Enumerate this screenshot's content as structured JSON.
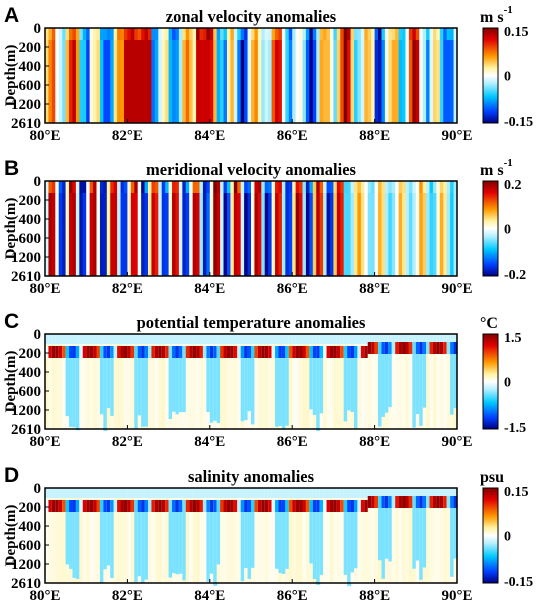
{
  "chart_data": [
    {
      "type": "heatmap",
      "panel_label": "A",
      "title": "zonal velocity anomalies",
      "ylabel": "Depth(m)",
      "unit": "m s",
      "unit_sup": "-1",
      "x_ticks": [
        "80°E",
        "82°E",
        "84°E",
        "86°E",
        "88°E",
        "90°E"
      ],
      "y_ticks": [
        "0",
        "200",
        "400",
        "600",
        "1200",
        "2610"
      ],
      "colorbar_ticks": [
        "0.15",
        "0",
        "-0.15"
      ],
      "xlim": [
        80,
        90
      ],
      "clim": [
        -0.15,
        0.15
      ],
      "pattern": "vertical-stripes"
    },
    {
      "type": "heatmap",
      "panel_label": "B",
      "title": "meridional velocity anomalies",
      "ylabel": "Depth(m)",
      "unit": "m s",
      "unit_sup": "-1",
      "x_ticks": [
        "80°E",
        "82°E",
        "84°E",
        "86°E",
        "88°E",
        "90°E"
      ],
      "y_ticks": [
        "0",
        "200",
        "400",
        "600",
        "1200",
        "2610"
      ],
      "colorbar_ticks": [
        "0.2",
        "0",
        "-0.2"
      ],
      "xlim": [
        80,
        90
      ],
      "clim": [
        -0.2,
        0.2
      ],
      "pattern": "vertical-stripes"
    },
    {
      "type": "heatmap",
      "panel_label": "C",
      "title": "potential temperature anomalies",
      "ylabel": "Depth(m)",
      "unit": "°C",
      "unit_sup": "",
      "x_ticks": [
        "80°E",
        "82°E",
        "84°E",
        "86°E",
        "88°E",
        "90°E"
      ],
      "y_ticks": [
        "0",
        "200",
        "400",
        "600",
        "1200",
        "2610"
      ],
      "colorbar_ticks": [
        "1.5",
        "0",
        "-1.5"
      ],
      "xlim": [
        80,
        90
      ],
      "clim": [
        -1.5,
        1.5
      ],
      "pattern": "thermocline-band"
    },
    {
      "type": "heatmap",
      "panel_label": "D",
      "title": "salinity anomalies",
      "ylabel": "Depth(m)",
      "unit": "psu",
      "unit_sup": "",
      "x_ticks": [
        "80°E",
        "82°E",
        "84°E",
        "86°E",
        "88°E",
        "90°E"
      ],
      "y_ticks": [
        "0",
        "200",
        "400",
        "600",
        "1200",
        "2610"
      ],
      "colorbar_ticks": [
        "0.15",
        "0",
        "-0.15"
      ],
      "xlim": [
        80,
        90
      ],
      "clim": [
        -0.15,
        0.15
      ],
      "pattern": "thermocline-band"
    }
  ]
}
